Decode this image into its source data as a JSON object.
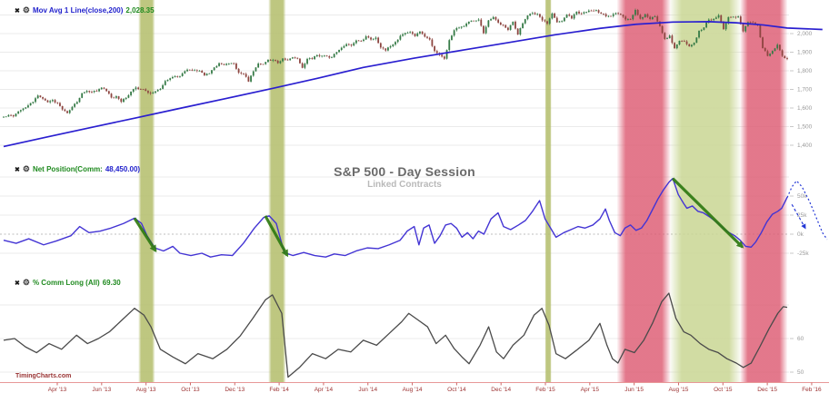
{
  "watermark": "TimingCharts.com",
  "header": {
    "title": "S&P 500 - Day Session",
    "subtitle": "Linked Contracts"
  },
  "legends": {
    "price": {
      "remove_icon": "✖",
      "settings_icon": "⚙",
      "name": "Mov Avg 1 Line(close,200)",
      "value": "2,028.35"
    },
    "net": {
      "remove_icon": "✖",
      "settings_icon": "⚙",
      "name": "Net Position(Comm:",
      "value": "48,450.00)"
    },
    "pct": {
      "remove_icon": "✖",
      "settings_icon": "⚙",
      "name": "% Comm Long (All)",
      "value": "69.30"
    }
  },
  "colors": {
    "ma_line": "#2a1fd0",
    "net_line": "#4334d4",
    "pct_line": "#4a4a4a",
    "candle_up": "#357a46",
    "candle_down": "#8d4540",
    "band_olive": "#b5bf6f",
    "band_red": "#dd5b72",
    "band_green": "#c9d693",
    "arrow_green": "#2f7a12",
    "projection_blue": "#2438d6",
    "axis_line": "#e89898",
    "axis_tick": "#cc6666",
    "axis_text": "#9c3232",
    "grid": "#ebebeb",
    "grid_zero": "#bdbdbd",
    "ytick_text": "#9a9a9a"
  },
  "x_axis": {
    "labels": [
      "Apr '13",
      "Jun '13",
      "Aug '13",
      "Oct '13",
      "Dec '13",
      "Feb '14",
      "Apr '14",
      "Jun '14",
      "Aug '14",
      "Oct '14",
      "Dec '14",
      "Feb '15",
      "Apr '15",
      "Jun '15",
      "Aug '15",
      "Oct '15",
      "Dec '15",
      "Feb '16"
    ]
  },
  "chart_data": [
    {
      "panel": "price",
      "type": "candlestick",
      "title": "S&P 500 - Day Session (Linked Contracts)",
      "start": "Apr '13",
      "end": "Feb '16",
      "sampling": "weekly closes, estimated from pixels",
      "yticks": [
        "2,000",
        "1,900",
        "1,800",
        "1,700",
        "1,600",
        "1,500",
        "1,400"
      ],
      "ytick_values": [
        2000,
        1900,
        1800,
        1700,
        1600,
        1500,
        1400
      ],
      "grid_extra_values": [
        2100
      ],
      "closes": [
        1553,
        1562,
        1555,
        1582,
        1597,
        1614,
        1633,
        1667,
        1650,
        1631,
        1643,
        1627,
        1592,
        1573,
        1606,
        1632,
        1680,
        1692,
        1686,
        1690,
        1709,
        1691,
        1656,
        1663,
        1633,
        1655,
        1688,
        1710,
        1701,
        1692,
        1678,
        1690,
        1703,
        1745,
        1760,
        1771,
        1771,
        1798,
        1805,
        1803,
        1800,
        1775,
        1786,
        1818,
        1841,
        1831,
        1838,
        1839,
        1790,
        1783,
        1742,
        1797,
        1839,
        1836,
        1859,
        1859,
        1841,
        1866,
        1857,
        1872,
        1865,
        1816,
        1864,
        1863,
        1884,
        1881,
        1878,
        1872,
        1900,
        1924,
        1943,
        1936,
        1963,
        1961,
        1985,
        1968,
        1978,
        1925,
        1909,
        1932,
        1955,
        1988,
        2003,
        2008,
        1986,
        2011,
        1983,
        1968,
        1906,
        1886,
        1865,
        1965,
        2018,
        2032,
        2040,
        2064,
        2068,
        2075,
        2002,
        2071,
        2089,
        2059,
        2046,
        2020,
        2064,
        1995,
        2055,
        2097,
        2110,
        2105,
        2071,
        2053,
        2108,
        2061,
        2067,
        2102,
        2081,
        2118,
        2108,
        2116,
        2123,
        2126,
        2107,
        2093,
        2094,
        2110,
        2101,
        2076,
        2077,
        2127,
        2080,
        2104,
        2078,
        2092,
        2040,
        1971,
        1989,
        1921,
        1961,
        1958,
        1931,
        1951,
        2015,
        2033,
        2075,
        2079,
        2099,
        2023,
        2089,
        2090,
        2092,
        2012,
        2061,
        2060,
        2044,
        1922,
        1880,
        1907,
        1940,
        1880,
        1865
      ],
      "overlay": {
        "name": "Mov Avg 1 Line(close,200)",
        "latest": 2028.35,
        "points": [
          [
            0,
            1393
          ],
          [
            0.056,
            1445
          ],
          [
            0.111,
            1495
          ],
          [
            0.17,
            1548
          ],
          [
            0.227,
            1600
          ],
          [
            0.285,
            1652
          ],
          [
            0.343,
            1705
          ],
          [
            0.401,
            1760
          ],
          [
            0.459,
            1818
          ],
          [
            0.524,
            1868
          ],
          [
            0.587,
            1912
          ],
          [
            0.645,
            1952
          ],
          [
            0.703,
            1993
          ],
          [
            0.761,
            2028
          ],
          [
            0.807,
            2050
          ],
          [
            0.854,
            2062
          ],
          [
            0.9,
            2064
          ],
          [
            0.935,
            2058
          ],
          [
            0.97,
            2046
          ],
          [
            1,
            2030
          ],
          [
            1.045,
            2022
          ]
        ]
      }
    },
    {
      "panel": "net_position",
      "type": "line",
      "name": "Net Position (Commercials)",
      "unit": "thousand contracts",
      "latest": 48.45,
      "yticks": [
        "50k",
        "25k",
        "0k",
        "-25k"
      ],
      "ytick_values": [
        50,
        25,
        0,
        -25
      ],
      "grid_extra_values": [
        75
      ],
      "zero_line_value": 0,
      "points": [
        [
          0,
          -8
        ],
        [
          0.016,
          -12
        ],
        [
          0.032,
          -6
        ],
        [
          0.051,
          -14
        ],
        [
          0.067,
          -9
        ],
        [
          0.086,
          -2
        ],
        [
          0.097,
          10
        ],
        [
          0.109,
          2
        ],
        [
          0.123,
          4
        ],
        [
          0.137,
          8
        ],
        [
          0.153,
          14
        ],
        [
          0.167,
          21
        ],
        [
          0.176,
          14
        ],
        [
          0.183,
          -2
        ],
        [
          0.193,
          -18
        ],
        [
          0.204,
          -22
        ],
        [
          0.216,
          -16
        ],
        [
          0.225,
          -25
        ],
        [
          0.239,
          -28
        ],
        [
          0.253,
          -25
        ],
        [
          0.264,
          -30
        ],
        [
          0.278,
          -27
        ],
        [
          0.292,
          -28
        ],
        [
          0.306,
          -12
        ],
        [
          0.32,
          8
        ],
        [
          0.332,
          22
        ],
        [
          0.339,
          24
        ],
        [
          0.348,
          14
        ],
        [
          0.358,
          -24
        ],
        [
          0.369,
          -28
        ],
        [
          0.383,
          -24
        ],
        [
          0.397,
          -28
        ],
        [
          0.411,
          -30
        ],
        [
          0.422,
          -26
        ],
        [
          0.436,
          -28
        ],
        [
          0.45,
          -22
        ],
        [
          0.464,
          -18
        ],
        [
          0.478,
          -19
        ],
        [
          0.492,
          -14
        ],
        [
          0.506,
          -8
        ],
        [
          0.515,
          4
        ],
        [
          0.524,
          10
        ],
        [
          0.53,
          -14
        ],
        [
          0.536,
          8
        ],
        [
          0.543,
          12
        ],
        [
          0.55,
          -12
        ],
        [
          0.557,
          -2
        ],
        [
          0.564,
          12
        ],
        [
          0.571,
          14
        ],
        [
          0.578,
          8
        ],
        [
          0.585,
          -4
        ],
        [
          0.592,
          2
        ],
        [
          0.599,
          -6
        ],
        [
          0.606,
          4
        ],
        [
          0.613,
          0
        ],
        [
          0.622,
          20
        ],
        [
          0.631,
          28
        ],
        [
          0.638,
          10
        ],
        [
          0.647,
          6
        ],
        [
          0.657,
          12
        ],
        [
          0.666,
          18
        ],
        [
          0.675,
          30
        ],
        [
          0.684,
          44
        ],
        [
          0.691,
          20
        ],
        [
          0.698,
          8
        ],
        [
          0.705,
          -4
        ],
        [
          0.715,
          2
        ],
        [
          0.724,
          6
        ],
        [
          0.733,
          10
        ],
        [
          0.742,
          8
        ],
        [
          0.752,
          12
        ],
        [
          0.761,
          20
        ],
        [
          0.768,
          33
        ],
        [
          0.773,
          18
        ],
        [
          0.78,
          2
        ],
        [
          0.787,
          -2
        ],
        [
          0.793,
          8
        ],
        [
          0.8,
          12
        ],
        [
          0.807,
          5
        ],
        [
          0.814,
          8
        ],
        [
          0.821,
          18
        ],
        [
          0.828,
          32
        ],
        [
          0.835,
          46
        ],
        [
          0.842,
          58
        ],
        [
          0.849,
          68
        ],
        [
          0.854,
          73
        ],
        [
          0.861,
          52
        ],
        [
          0.868,
          40
        ],
        [
          0.872,
          34
        ],
        [
          0.879,
          37
        ],
        [
          0.886,
          30
        ],
        [
          0.893,
          28
        ],
        [
          0.902,
          22
        ],
        [
          0.912,
          14
        ],
        [
          0.919,
          7
        ],
        [
          0.926,
          2
        ],
        [
          0.933,
          -2
        ],
        [
          0.94,
          -8
        ],
        [
          0.947,
          -16
        ],
        [
          0.954,
          -17
        ],
        [
          0.96,
          -10
        ],
        [
          0.967,
          2
        ],
        [
          0.974,
          16
        ],
        [
          0.981,
          26
        ],
        [
          0.988,
          30
        ],
        [
          0.993,
          34
        ],
        [
          0.997,
          42
        ],
        [
          1,
          48.45
        ]
      ],
      "projection_dotted": [
        [
          1,
          48
        ],
        [
          1.006,
          62
        ],
        [
          1.012,
          70
        ],
        [
          1.019,
          62
        ],
        [
          1.028,
          44
        ],
        [
          1.037,
          22
        ],
        [
          1.045,
          2
        ],
        [
          1.051,
          -7
        ]
      ],
      "projection_arrow": {
        "from": [
          1.006,
          39
        ],
        "to": [
          1.023,
          8
        ]
      }
    },
    {
      "panel": "pct_comm_long",
      "type": "line",
      "name": "% Comm Long (All)",
      "latest": 69.3,
      "yticks": [
        "60",
        "50"
      ],
      "ytick_values": [
        60,
        50
      ],
      "grid_extra_values": [
        70
      ],
      "points": [
        [
          0,
          59.5
        ],
        [
          0.014,
          60
        ],
        [
          0.028,
          57.5
        ],
        [
          0.042,
          55.8
        ],
        [
          0.058,
          58.5
        ],
        [
          0.074,
          56.8
        ],
        [
          0.093,
          61
        ],
        [
          0.107,
          58.5
        ],
        [
          0.121,
          60
        ],
        [
          0.135,
          62
        ],
        [
          0.151,
          65.5
        ],
        [
          0.167,
          69
        ],
        [
          0.179,
          67
        ],
        [
          0.188,
          63.5
        ],
        [
          0.2,
          56.8
        ],
        [
          0.216,
          54.5
        ],
        [
          0.232,
          52.5
        ],
        [
          0.248,
          55.5
        ],
        [
          0.267,
          54
        ],
        [
          0.285,
          56.8
        ],
        [
          0.302,
          60.8
        ],
        [
          0.318,
          66
        ],
        [
          0.334,
          71.5
        ],
        [
          0.343,
          73
        ],
        [
          0.355,
          67.5
        ],
        [
          0.363,
          48.5
        ],
        [
          0.378,
          51.5
        ],
        [
          0.394,
          55.5
        ],
        [
          0.411,
          54
        ],
        [
          0.427,
          56.8
        ],
        [
          0.443,
          56
        ],
        [
          0.459,
          59.5
        ],
        [
          0.476,
          58
        ],
        [
          0.492,
          61.5
        ],
        [
          0.508,
          65
        ],
        [
          0.517,
          67.5
        ],
        [
          0.529,
          65.5
        ],
        [
          0.541,
          63.5
        ],
        [
          0.552,
          58.5
        ],
        [
          0.564,
          61
        ],
        [
          0.575,
          57
        ],
        [
          0.585,
          54.5
        ],
        [
          0.594,
          52.5
        ],
        [
          0.608,
          58
        ],
        [
          0.619,
          63.5
        ],
        [
          0.629,
          56
        ],
        [
          0.638,
          54
        ],
        [
          0.65,
          58
        ],
        [
          0.664,
          61
        ],
        [
          0.677,
          67
        ],
        [
          0.687,
          69
        ],
        [
          0.696,
          64
        ],
        [
          0.705,
          55.5
        ],
        [
          0.717,
          54
        ],
        [
          0.731,
          56.5
        ],
        [
          0.747,
          59.5
        ],
        [
          0.761,
          64.5
        ],
        [
          0.77,
          58
        ],
        [
          0.777,
          54
        ],
        [
          0.784,
          52.7
        ],
        [
          0.793,
          56.8
        ],
        [
          0.805,
          55.8
        ],
        [
          0.817,
          59.5
        ],
        [
          0.828,
          64.5
        ],
        [
          0.84,
          71
        ],
        [
          0.849,
          73.5
        ],
        [
          0.858,
          66
        ],
        [
          0.868,
          62
        ],
        [
          0.877,
          61
        ],
        [
          0.889,
          58.5
        ],
        [
          0.9,
          56.8
        ],
        [
          0.912,
          55.8
        ],
        [
          0.923,
          54
        ],
        [
          0.935,
          52.7
        ],
        [
          0.944,
          51.4
        ],
        [
          0.954,
          52.7
        ],
        [
          0.965,
          57.5
        ],
        [
          0.977,
          63
        ],
        [
          0.988,
          67.5
        ],
        [
          0.995,
          69.5
        ],
        [
          1,
          69.3
        ]
      ]
    }
  ],
  "annotations": {
    "bands": [
      {
        "xf": [
          0.172,
          0.193
        ],
        "tone": "olive",
        "period": "Sep–Oct '13"
      },
      {
        "xf": [
          0.338,
          0.36
        ],
        "tone": "olive",
        "period": "Feb–Mar '14"
      },
      {
        "xf": [
          0.691,
          0.699
        ],
        "tone": "olive",
        "period": "Mar–Apr '15"
      },
      {
        "xf": [
          0.783,
          0.851
        ],
        "tone": "red",
        "period": "Jul–Aug '15"
      },
      {
        "xf": [
          0.851,
          0.94
        ],
        "tone": "green",
        "period": "Sep–Nov '15"
      },
      {
        "xf": [
          0.94,
          1.0
        ],
        "tone": "red",
        "period": "Dec '15–Feb '16"
      }
    ],
    "arrows": [
      {
        "panel": "net_position",
        "from": [
          0.167,
          21
        ],
        "to": [
          0.194,
          -22
        ]
      },
      {
        "panel": "net_position",
        "from": [
          0.334,
          24
        ],
        "to": [
          0.362,
          -28
        ]
      },
      {
        "panel": "net_position",
        "from": [
          0.854,
          73
        ],
        "to": [
          0.943,
          -17
        ]
      }
    ]
  }
}
